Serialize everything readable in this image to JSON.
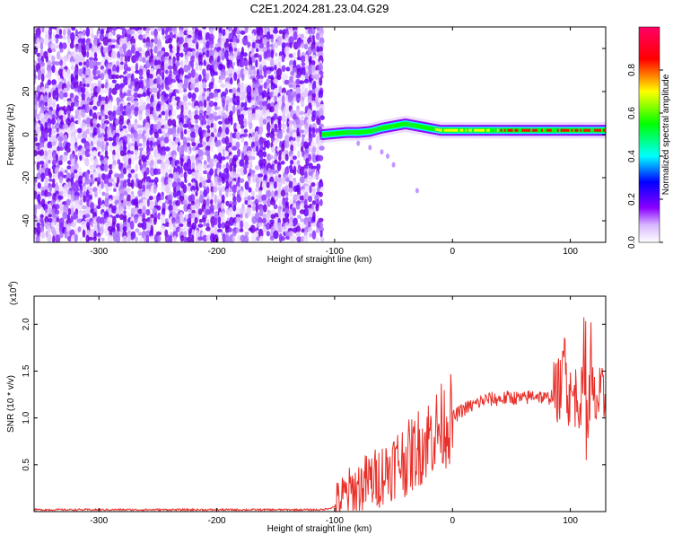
{
  "title": "C2E1.2024.281.23.04.G29",
  "chart_data": [
    {
      "type": "heatmap",
      "title": "C2E1.2024.281.23.04.G29",
      "xlabel": "Height of straight line (km)",
      "ylabel": "Frequency (Hz)",
      "xlim": [
        -355,
        130
      ],
      "ylim": [
        -50,
        50
      ],
      "x_ticks": [
        "-300",
        "-200",
        "-100",
        "0",
        "100"
      ],
      "x_tick_values": [
        -300,
        -200,
        -100,
        0,
        100
      ],
      "y_ticks": [
        "-40",
        "-20",
        "0",
        "20",
        "40"
      ],
      "y_tick_values": [
        -40,
        -20,
        0,
        20,
        40
      ],
      "noise_region_x": [
        -355,
        -110
      ],
      "signal_trace": {
        "x": [
          -110,
          -100,
          -90,
          -80,
          -70,
          -60,
          -50,
          -40,
          -30,
          -20,
          -10,
          0,
          20,
          40,
          60,
          80,
          90,
          100,
          110,
          120,
          130
        ],
        "frequency": [
          0,
          0.5,
          1,
          1,
          1.5,
          3,
          4,
          5,
          4,
          3,
          2,
          2,
          2,
          2,
          2,
          2,
          2,
          2,
          2,
          2,
          2
        ]
      },
      "colorbar": {
        "label": "Normalized spectral amplitude",
        "range": [
          0,
          1
        ],
        "ticks": [
          "0.0",
          "0.2",
          "0.4",
          "0.6",
          "0.8"
        ],
        "tick_values": [
          0.0,
          0.2,
          0.4,
          0.6,
          0.8
        ],
        "colors": [
          "#ffffff",
          "#8a00ff",
          "#0000ff",
          "#00ffff",
          "#00ff00",
          "#ffff00",
          "#ff0000",
          "#ff0066"
        ]
      }
    },
    {
      "type": "line",
      "xlabel": "Height of straight line (km)",
      "ylabel": "SNR (10 * v/v)",
      "y_multiplier": "(x10",
      "y_multiplier_exp": "4",
      "y_multiplier_close": ")",
      "xlim": [
        -355,
        130
      ],
      "ylim": [
        0,
        2.3
      ],
      "x_ticks": [
        "-300",
        "-200",
        "-100",
        "0",
        "100"
      ],
      "x_tick_values": [
        -300,
        -200,
        -100,
        0,
        100
      ],
      "y_ticks": [
        "0.5",
        "1.0",
        "1.5",
        "2.0"
      ],
      "y_tick_values": [
        0.5,
        1.0,
        1.5,
        2.0
      ],
      "line_color": "#e8302a",
      "series": [
        {
          "x": [
            -355,
            -300,
            -200,
            -110,
            -100,
            -95,
            -90,
            -85,
            -80,
            -75,
            -70,
            -65,
            -60,
            -55,
            -50,
            -45,
            -40,
            -35,
            -30,
            -25,
            -20,
            -15,
            -10,
            -5,
            0,
            5,
            10,
            15,
            20,
            25,
            30,
            40,
            50,
            60,
            70,
            80,
            85,
            90,
            93,
            95,
            97,
            100,
            105,
            110,
            113,
            115,
            117,
            120,
            125,
            130
          ],
          "values": [
            0.02,
            0.02,
            0.02,
            0.02,
            0.05,
            0.12,
            0.18,
            0.22,
            0.25,
            0.3,
            0.33,
            0.35,
            0.4,
            0.45,
            0.5,
            0.55,
            0.55,
            0.6,
            0.68,
            0.72,
            0.8,
            0.85,
            0.9,
            0.95,
            1.0,
            1.05,
            1.1,
            1.12,
            1.15,
            1.18,
            1.2,
            1.2,
            1.22,
            1.2,
            1.25,
            1.2,
            1.25,
            1.3,
            1.35,
            1.6,
            1.3,
            1.2,
            1.25,
            1.2,
            1.3,
            1.0,
            1.4,
            1.15,
            1.2,
            1.2
          ]
        }
      ]
    }
  ]
}
